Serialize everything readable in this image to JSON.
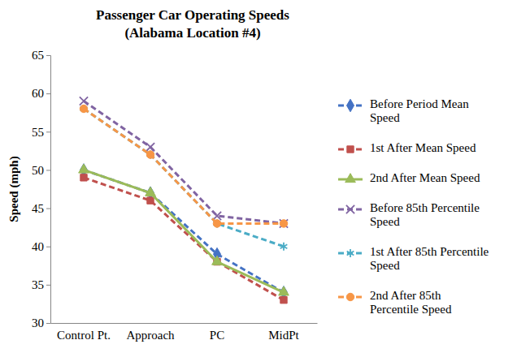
{
  "chart_data": {
    "type": "line",
    "title": "Passenger Car Operating Speeds",
    "subtitle": "(Alabama Location #4)",
    "y_label": "Speed (mph)",
    "categories": [
      "Control Pt.",
      "Approach",
      "PC",
      "MidPt"
    ],
    "series": [
      {
        "name": "Before Period Mean Speed",
        "color": "#4472c4",
        "marker": "diamond",
        "line_style": "dashed",
        "values": [
          50,
          47,
          39,
          34
        ]
      },
      {
        "name": "1st After Mean Speed",
        "color": "#c0504d",
        "marker": "square",
        "line_style": "dashed",
        "values": [
          49,
          46,
          38,
          33
        ]
      },
      {
        "name": "2nd After Mean Speed",
        "color": "#9bbb59",
        "marker": "triangle",
        "line_style": "solid",
        "values": [
          50,
          47,
          38,
          34
        ]
      },
      {
        "name": "Before 85th Percentile Speed",
        "color": "#8064a2",
        "marker": "x",
        "line_style": "dashed",
        "values": [
          59,
          53,
          44,
          43
        ]
      },
      {
        "name": "1st After 85th Percentile Speed",
        "color": "#4bacc6",
        "marker": "asterisk",
        "line_style": "dashed",
        "values": [
          58,
          52,
          43,
          40
        ]
      },
      {
        "name": "2nd After 85th Percentile Speed",
        "color": "#f79646",
        "marker": "circle",
        "line_style": "dashed",
        "values": [
          58,
          52,
          43,
          43
        ]
      }
    ],
    "ylim": [
      30,
      65
    ],
    "yticks": [
      30,
      35,
      40,
      45,
      50,
      55,
      60,
      65
    ],
    "grid": false,
    "legend": "right"
  }
}
